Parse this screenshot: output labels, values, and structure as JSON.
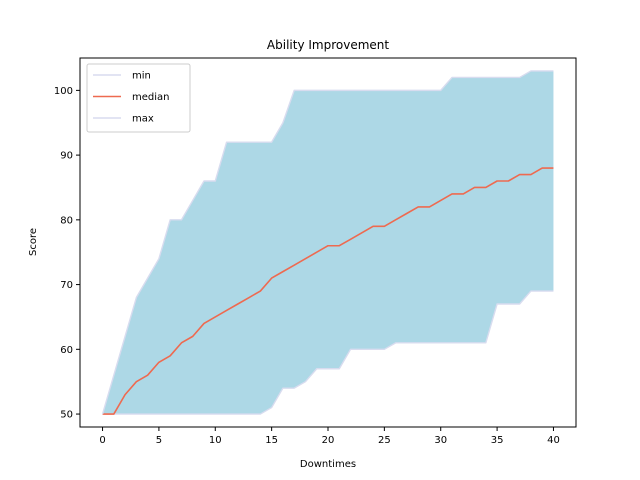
{
  "chart_data": {
    "type": "area",
    "title": "Ability Improvement",
    "xlabel": "Downtimes",
    "ylabel": "Score",
    "xlim": [
      -2,
      42
    ],
    "ylim": [
      48,
      105
    ],
    "xticks": [
      0,
      5,
      10,
      15,
      20,
      25,
      30,
      35,
      40
    ],
    "yticks": [
      50,
      60,
      70,
      80,
      90,
      100
    ],
    "legend_position": "top-left",
    "grid": false,
    "x": [
      0,
      1,
      2,
      3,
      4,
      5,
      6,
      7,
      8,
      9,
      10,
      11,
      12,
      13,
      14,
      15,
      16,
      17,
      18,
      19,
      20,
      21,
      22,
      23,
      24,
      25,
      26,
      27,
      28,
      29,
      30,
      31,
      32,
      33,
      34,
      35,
      36,
      37,
      38,
      39,
      40
    ],
    "fill_color": "#add8e6",
    "series": [
      {
        "name": "min",
        "color": "#d8dcef",
        "values": [
          50,
          50,
          50,
          50,
          50,
          50,
          50,
          50,
          50,
          50,
          50,
          50,
          50,
          50,
          50,
          51,
          54,
          54,
          55,
          57,
          57,
          57,
          60,
          60,
          60,
          60,
          61,
          61,
          61,
          61,
          61,
          61,
          61,
          61,
          61,
          67,
          67,
          67,
          69,
          69,
          69
        ]
      },
      {
        "name": "median",
        "color": "#ee6a50",
        "values": [
          50,
          50,
          53,
          55,
          56,
          58,
          59,
          61,
          62,
          64,
          65,
          66,
          67,
          68,
          69,
          71,
          72,
          73,
          74,
          75,
          76,
          76,
          77,
          78,
          79,
          79,
          80,
          81,
          82,
          82,
          83,
          84,
          84,
          85,
          85,
          86,
          86,
          87,
          87,
          88,
          88
        ]
      },
      {
        "name": "max",
        "color": "#d8dcef",
        "values": [
          50,
          56,
          62,
          68,
          71,
          74,
          80,
          80,
          83,
          86,
          86,
          92,
          92,
          92,
          92,
          92,
          95,
          100,
          100,
          100,
          100,
          100,
          100,
          100,
          100,
          100,
          100,
          100,
          100,
          100,
          100,
          102,
          102,
          102,
          102,
          102,
          102,
          102,
          103,
          103,
          103
        ]
      }
    ]
  }
}
